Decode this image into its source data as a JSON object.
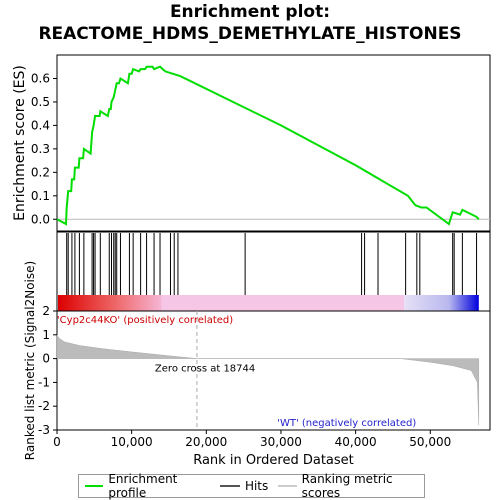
{
  "title_line1": "Enrichment plot:",
  "title_line2": "REACTOME_HDMS_DEMETHYLATE_HISTONES",
  "legend": {
    "items": [
      {
        "label": "Enrichment profile",
        "color": "#00dd00"
      },
      {
        "label": "Hits",
        "color": "#555555"
      },
      {
        "label": "Ranking metric scores",
        "color": "#cccccc"
      }
    ]
  },
  "chart_data": {
    "type": "line",
    "x_axis_label": "Rank in Ordered Dataset",
    "xlim": [
      0,
      58000
    ],
    "x_ticks": [
      0,
      10000,
      20000,
      30000,
      40000,
      50000
    ],
    "x_tick_labels": [
      "0",
      "10,000",
      "20,000",
      "30,000",
      "40,000",
      "50,000"
    ],
    "es_panel": {
      "ylabel": "Enrichment score (ES)",
      "ylim": [
        -0.05,
        0.7
      ],
      "y_ticks": [
        0.0,
        0.1,
        0.2,
        0.3,
        0.4,
        0.5,
        0.6
      ],
      "y_tick_labels": [
        "0.0",
        "0.1",
        "0.2",
        "0.3",
        "0.4",
        "0.5",
        "0.6"
      ],
      "series": [
        {
          "color": "#00dd00",
          "points": [
            [
              0,
              0.0
            ],
            [
              1200,
              -0.02
            ],
            [
              1300,
              0.05
            ],
            [
              1500,
              0.12
            ],
            [
              1900,
              0.12
            ],
            [
              2000,
              0.17
            ],
            [
              2300,
              0.17
            ],
            [
              2400,
              0.22
            ],
            [
              2900,
              0.22
            ],
            [
              3000,
              0.26
            ],
            [
              3500,
              0.26
            ],
            [
              3600,
              0.3
            ],
            [
              4500,
              0.28
            ],
            [
              4700,
              0.37
            ],
            [
              4900,
              0.4
            ],
            [
              5100,
              0.44
            ],
            [
              5700,
              0.44
            ],
            [
              5800,
              0.46
            ],
            [
              6800,
              0.44
            ],
            [
              7000,
              0.47
            ],
            [
              7200,
              0.47
            ],
            [
              7300,
              0.5
            ],
            [
              7600,
              0.52
            ],
            [
              7800,
              0.55
            ],
            [
              8000,
              0.58
            ],
            [
              8300,
              0.58
            ],
            [
              8500,
              0.6
            ],
            [
              9500,
              0.58
            ],
            [
              9700,
              0.62
            ],
            [
              10000,
              0.62
            ],
            [
              10200,
              0.64
            ],
            [
              11000,
              0.63
            ],
            [
              11200,
              0.64
            ],
            [
              11800,
              0.64
            ],
            [
              12000,
              0.65
            ],
            [
              12800,
              0.65
            ],
            [
              13000,
              0.64
            ],
            [
              13800,
              0.65
            ],
            [
              14500,
              0.63
            ],
            [
              16500,
              0.61
            ],
            [
              30000,
              0.4
            ],
            [
              40000,
              0.23
            ],
            [
              47000,
              0.1
            ],
            [
              48000,
              0.06
            ],
            [
              48800,
              0.05
            ],
            [
              49500,
              0.05
            ],
            [
              52500,
              -0.02
            ],
            [
              53000,
              0.03
            ],
            [
              54000,
              0.02
            ],
            [
              54300,
              0.04
            ],
            [
              56200,
              0.01
            ],
            [
              56500,
              0.0
            ]
          ]
        }
      ]
    },
    "hits_panel": {
      "hit_positions": [
        1300,
        1500,
        2000,
        2400,
        3000,
        3600,
        4700,
        4900,
        5100,
        5800,
        7000,
        7300,
        7600,
        7800,
        8000,
        8500,
        9700,
        10200,
        11200,
        12000,
        13000,
        13800,
        15200,
        15700,
        16200,
        25200,
        40800,
        41200,
        43000,
        46700,
        48200,
        48600,
        53000,
        53200,
        54300,
        56200
      ],
      "colorbar_positive_color": "#dd0000",
      "colorbar_negative_color": "#0000dd"
    },
    "metric_panel": {
      "ylabel": "Ranked list metric (Signal2Noise)",
      "ylim": [
        -3,
        2
      ],
      "y_ticks": [
        -3,
        -2,
        -1,
        0,
        1,
        2
      ],
      "y_tick_labels": [
        "-3",
        "-2",
        "-1",
        "0",
        "1",
        "2"
      ],
      "zero_cross_label": "Zero cross at 18744",
      "zero_cross_x": 18744,
      "positive_label": "'Cyp2c44KO' (positively correlated)",
      "negative_label": "'WT' (negatively correlated)",
      "profile": [
        [
          0,
          1.0
        ],
        [
          300,
          0.85
        ],
        [
          1000,
          0.7
        ],
        [
          3000,
          0.55
        ],
        [
          6000,
          0.42
        ],
        [
          10000,
          0.28
        ],
        [
          14000,
          0.15
        ],
        [
          18744,
          0.0
        ],
        [
          46000,
          0.0
        ],
        [
          50000,
          -0.15
        ],
        [
          53000,
          -0.3
        ],
        [
          55500,
          -0.5
        ],
        [
          56300,
          -1.0
        ],
        [
          56500,
          -2.8
        ]
      ]
    }
  }
}
